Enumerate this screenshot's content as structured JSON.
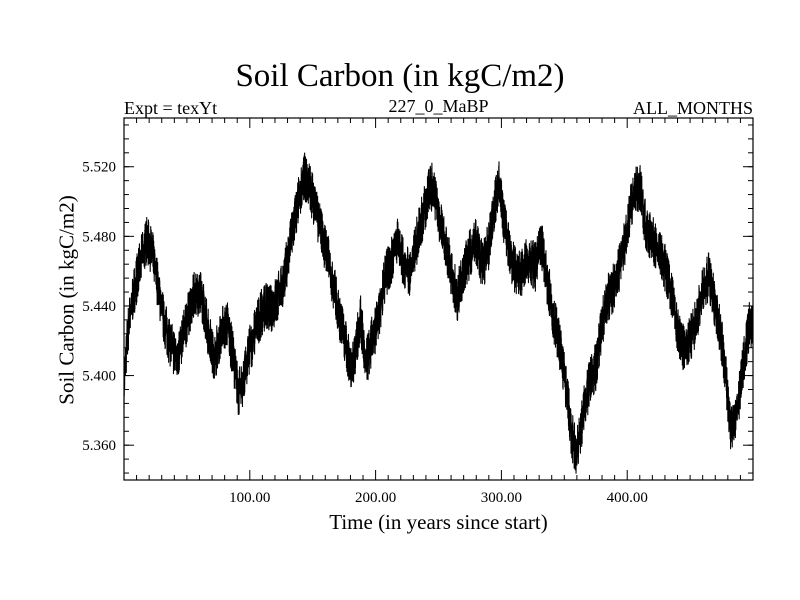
{
  "chart_data": {
    "type": "line",
    "title": "Soil Carbon (in kgC/m2)",
    "subtitle_left": "Expt = texYt",
    "subtitle_center": "227_0_MaBP",
    "subtitle_right": "ALL_MONTHS",
    "xlabel": "Time (in years since start)",
    "ylabel": "Soil Carbon (in kgC/m2)",
    "xlim": [
      0,
      500
    ],
    "ylim": [
      5.34,
      5.548
    ],
    "x_ticks": [
      100,
      200,
      300,
      400
    ],
    "x_tick_labels": [
      "100.00",
      "200.00",
      "300.00",
      "400.00"
    ],
    "y_ticks": [
      5.36,
      5.4,
      5.44,
      5.48,
      5.52
    ],
    "y_tick_labels": [
      "5.360",
      "5.400",
      "5.440",
      "5.480",
      "5.520"
    ],
    "grid": false,
    "legend": "none",
    "line_color": "#000000",
    "series": [
      {
        "x": [
          0,
          3,
          7,
          12,
          18,
          22,
          27,
          32,
          37,
          42,
          47,
          52,
          57,
          62,
          67,
          72,
          77,
          82,
          87,
          91,
          94,
          100,
          107,
          112,
          117,
          122,
          127,
          132,
          138,
          143,
          147,
          151,
          156,
          162,
          167,
          172,
          177,
          181,
          185,
          188,
          192,
          197,
          202,
          207,
          212,
          217,
          222,
          227,
          232,
          237,
          242,
          246,
          250,
          255,
          260,
          265,
          270,
          275,
          280,
          285,
          290,
          294,
          298,
          302,
          307,
          312,
          317,
          322,
          327,
          332,
          337,
          342,
          347,
          352,
          356,
          360,
          365,
          370,
          375,
          380,
          385,
          390,
          395,
          400,
          405,
          410,
          415,
          420,
          425,
          430,
          435,
          440,
          445,
          450,
          455,
          460,
          465,
          470,
          475,
          479,
          482,
          487,
          492,
          497,
          500
        ],
        "y": [
          5.395,
          5.425,
          5.445,
          5.462,
          5.478,
          5.472,
          5.452,
          5.43,
          5.418,
          5.41,
          5.422,
          5.438,
          5.448,
          5.445,
          5.425,
          5.41,
          5.425,
          5.43,
          5.41,
          5.39,
          5.395,
          5.415,
          5.432,
          5.44,
          5.438,
          5.445,
          5.455,
          5.475,
          5.498,
          5.515,
          5.51,
          5.5,
          5.485,
          5.468,
          5.45,
          5.432,
          5.415,
          5.405,
          5.418,
          5.435,
          5.405,
          5.42,
          5.432,
          5.455,
          5.465,
          5.478,
          5.465,
          5.458,
          5.475,
          5.49,
          5.505,
          5.51,
          5.49,
          5.478,
          5.46,
          5.445,
          5.46,
          5.47,
          5.478,
          5.462,
          5.475,
          5.495,
          5.51,
          5.488,
          5.47,
          5.458,
          5.46,
          5.468,
          5.462,
          5.475,
          5.452,
          5.432,
          5.415,
          5.39,
          5.365,
          5.355,
          5.378,
          5.395,
          5.405,
          5.43,
          5.445,
          5.452,
          5.465,
          5.485,
          5.505,
          5.508,
          5.485,
          5.478,
          5.472,
          5.462,
          5.448,
          5.425,
          5.415,
          5.42,
          5.432,
          5.448,
          5.458,
          5.44,
          5.42,
          5.395,
          5.37,
          5.378,
          5.405,
          5.428,
          5.432
        ]
      }
    ]
  }
}
